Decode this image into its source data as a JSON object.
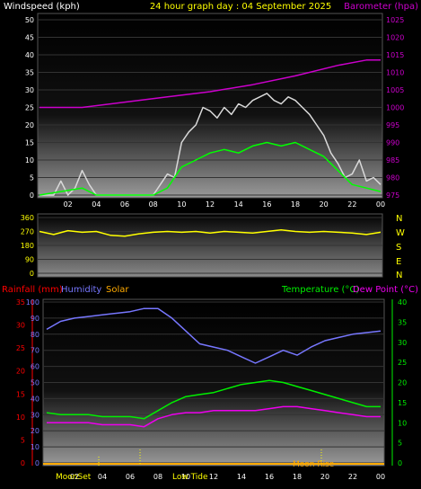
{
  "header": {
    "left": "Windspeed (kph)",
    "center": "24 hour graph day : 04 September 2025",
    "right": "Barometer (hpa)"
  },
  "panel2_right": [
    "N",
    "W",
    "S",
    "E",
    "N"
  ],
  "panel3_header": {
    "rainfall": "Rainfall (mm)",
    "humidity": "Humidity",
    "solar": "Solar",
    "temperature": "Temperature (°C)",
    "dewpoint": "Dew Point (°C)"
  },
  "moon": {
    "set_label": "MoonSet",
    "low_tide": "Low Tide",
    "moon_rise": "Moon Rise"
  },
  "colors": {
    "wind": "#ffffff",
    "gust": "#d9d9d9",
    "wind_avg": "#00ff00",
    "barometer": "#cc00cc",
    "direction": "#ffff00",
    "humidity": "#7777ff",
    "temperature": "#00ee00",
    "dewpoint": "#ee00ee",
    "rainfall": "#ff0000",
    "solar": "#ffaa00",
    "axis_text": "#ffff00"
  },
  "chart_data": [
    {
      "type": "line",
      "name": "wind_barometer",
      "x_ticks": [
        "02",
        "04",
        "06",
        "08",
        "10",
        "12",
        "14",
        "16",
        "18",
        "20",
        "22",
        "00"
      ],
      "y_left": {
        "label": "Windspeed (kph)",
        "ticks": [
          0,
          5,
          10,
          15,
          20,
          25,
          30,
          35,
          40,
          45,
          50
        ],
        "range": [
          0,
          50
        ]
      },
      "y_right": {
        "label": "Barometer (hpa)",
        "ticks": [
          975,
          980,
          985,
          990,
          995,
          1000,
          1005,
          1010,
          1015,
          1020,
          1025
        ],
        "range": [
          975,
          1025
        ]
      },
      "series": [
        {
          "name": "Gust",
          "x": [
            0,
            1,
            1.5,
            2,
            2.5,
            3,
            3.5,
            4,
            5,
            6,
            7,
            8,
            8.5,
            9,
            9.5,
            10,
            10.5,
            11,
            11.5,
            12,
            12.5,
            13,
            13.5,
            14,
            14.5,
            15,
            15.5,
            16,
            16.5,
            17,
            17.5,
            18,
            18.5,
            19,
            19.5,
            20,
            20.5,
            21,
            21.5,
            22,
            22.5,
            23,
            23.5,
            24
          ],
          "values": [
            0,
            0,
            4,
            0,
            2,
            7,
            3,
            0,
            0,
            0,
            0,
            0,
            3,
            6,
            5,
            15,
            18,
            20,
            25,
            24,
            22,
            25,
            23,
            26,
            25,
            27,
            28,
            29,
            27,
            26,
            28,
            27,
            25,
            23,
            20,
            17,
            12,
            9,
            5,
            6,
            10,
            4,
            5,
            3
          ]
        },
        {
          "name": "Average",
          "x": [
            0,
            3,
            4,
            8,
            9,
            10,
            11,
            12,
            13,
            14,
            15,
            16,
            17,
            18,
            19,
            20,
            21,
            22,
            23,
            24
          ],
          "values": [
            0,
            2,
            0,
            0,
            2,
            8,
            10,
            12,
            13,
            12,
            14,
            15,
            14,
            15,
            13,
            11,
            7,
            3,
            2,
            1
          ]
        },
        {
          "name": "Barometer",
          "x": [
            0,
            3,
            6,
            9,
            12,
            15,
            18,
            21,
            23,
            24
          ],
          "values": [
            1000,
            1000,
            1001.5,
            1003,
            1004.5,
            1006.5,
            1009,
            1012,
            1013.5,
            1013.5
          ]
        }
      ]
    },
    {
      "type": "line",
      "name": "wind_direction",
      "y_left": {
        "ticks": [
          0,
          90,
          180,
          270,
          360
        ],
        "range": [
          0,
          360
        ]
      },
      "series": [
        {
          "name": "Direction",
          "x": [
            0,
            1,
            2,
            3,
            4,
            5,
            6,
            7,
            8,
            9,
            10,
            11,
            12,
            13,
            14,
            15,
            16,
            17,
            18,
            19,
            20,
            21,
            22,
            23,
            24
          ],
          "values": [
            270,
            250,
            275,
            265,
            270,
            245,
            240,
            255,
            265,
            270,
            265,
            270,
            260,
            270,
            265,
            260,
            270,
            280,
            270,
            265,
            270,
            265,
            260,
            250,
            265
          ]
        }
      ]
    },
    {
      "type": "line",
      "name": "humidity_temperature",
      "x_ticks": [
        "02",
        "04",
        "06",
        "08",
        "10",
        "12",
        "14",
        "16",
        "18",
        "20",
        "22",
        "00"
      ],
      "y_left_outer": {
        "label": "Rainfall (mm)",
        "ticks": [
          0,
          5,
          10,
          15,
          20,
          25,
          30,
          35
        ]
      },
      "y_left_inner": {
        "label": "Humidity",
        "ticks": [
          0,
          10,
          20,
          30,
          40,
          50,
          60,
          70,
          80,
          90,
          100
        ],
        "range": [
          0,
          100
        ]
      },
      "y_right": {
        "label": "Temperature (°C)",
        "ticks": [
          0,
          5,
          10,
          15,
          20,
          25,
          30,
          35,
          40
        ],
        "range": [
          0,
          40
        ]
      },
      "series": [
        {
          "name": "Humidity",
          "x": [
            0,
            1,
            2,
            3,
            4,
            5,
            6,
            7,
            8,
            9,
            10,
            11,
            12,
            13,
            14,
            15,
            16,
            17,
            18,
            19,
            20,
            21,
            22,
            23,
            24
          ],
          "values": [
            83,
            88,
            90,
            91,
            92,
            93,
            94,
            96,
            96,
            90,
            82,
            74,
            72,
            70,
            66,
            62,
            66,
            70,
            67,
            72,
            76,
            78,
            80,
            81,
            82
          ]
        },
        {
          "name": "Temperature",
          "x": [
            0,
            1,
            2,
            3,
            4,
            5,
            6,
            7,
            8,
            9,
            10,
            11,
            12,
            13,
            14,
            15,
            16,
            17,
            18,
            19,
            20,
            21,
            22,
            23,
            24
          ],
          "values": [
            12.5,
            12,
            12,
            12,
            11.5,
            11.5,
            11.5,
            11,
            13,
            15,
            16.5,
            17,
            17.5,
            18.5,
            19.5,
            20,
            20.5,
            20,
            19,
            18,
            17,
            16,
            15,
            14,
            14
          ]
        },
        {
          "name": "Dew Point",
          "x": [
            0,
            1,
            2,
            3,
            4,
            5,
            6,
            7,
            8,
            9,
            10,
            11,
            12,
            13,
            14,
            15,
            16,
            17,
            18,
            19,
            20,
            21,
            22,
            23,
            24
          ],
          "values": [
            10,
            10,
            10,
            10,
            9.5,
            9.5,
            9.5,
            9,
            11,
            12,
            12.5,
            12.5,
            13,
            13,
            13,
            13,
            13.5,
            14,
            14,
            13.5,
            13,
            12.5,
            12,
            11.5,
            11.5
          ]
        }
      ]
    }
  ]
}
